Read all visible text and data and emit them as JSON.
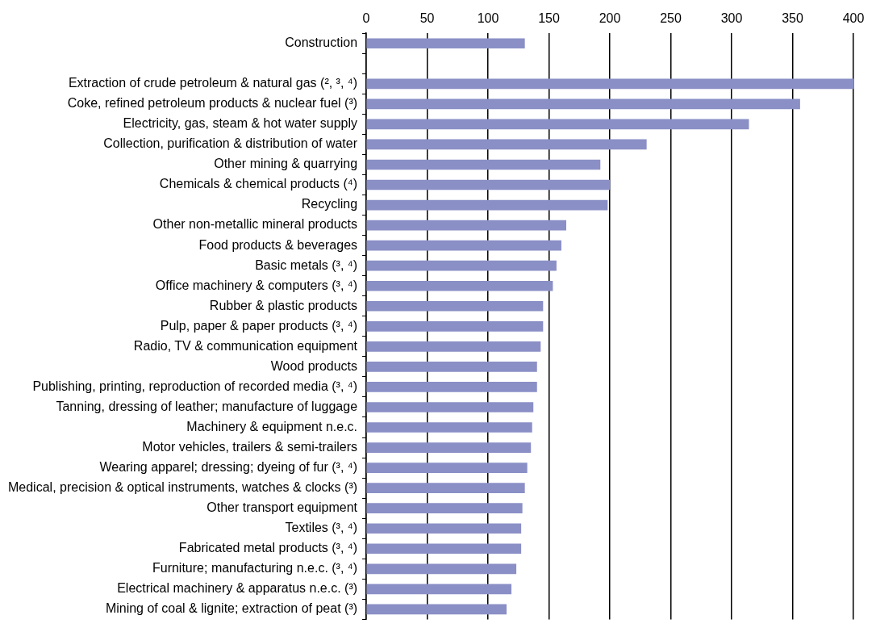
{
  "chart_data": {
    "type": "bar",
    "orientation": "horizontal",
    "categories": [
      "Construction",
      null,
      "Extraction of crude petroleum & natural gas (², ³, ⁴)",
      "Coke, refined petroleum products & nuclear fuel (³)",
      "Electricity, gas, steam & hot water supply",
      "Collection, purification & distribution of water",
      "Other mining & quarrying",
      "Chemicals & chemical products (⁴)",
      "Recycling",
      "Other non-metallic mineral products",
      "Food products & beverages",
      "Basic metals (³, ⁴)",
      "Office machinery & computers (³, ⁴)",
      "Rubber & plastic products",
      "Pulp, paper & paper products (³, ⁴)",
      "Radio, TV & communication equipment",
      "Wood products",
      "Publishing, printing, reproduction of recorded media (³, ⁴)",
      "Tanning, dressing of leather; manufacture of luggage",
      "Machinery & equipment n.e.c.",
      "Motor vehicles, trailers & semi-trailers",
      "Wearing apparel; dressing; dyeing of fur (³, ⁴)",
      "Medical, precision & optical instruments, watches & clocks (³)",
      "Other transport equipment",
      "Textiles (³, ⁴)",
      "Fabricated metal products (³, ⁴)",
      "Furniture; manufacturing n.e.c. (³, ⁴)",
      "Electrical machinery & apparatus n.e.c. (³)",
      "Mining of coal & lignite; extraction of peat (³)"
    ],
    "values": [
      130,
      null,
      400,
      356,
      314,
      230,
      192,
      200,
      198,
      164,
      160,
      156,
      153,
      145,
      145,
      143,
      140,
      140,
      137,
      136,
      135,
      132,
      130,
      128,
      127,
      127,
      123,
      119,
      115
    ],
    "color": "#8a8fc6",
    "xlim": [
      0,
      400
    ],
    "xticks": [
      0,
      50,
      100,
      150,
      200,
      250,
      300,
      350,
      400
    ],
    "grid": "x",
    "legend": false
  }
}
